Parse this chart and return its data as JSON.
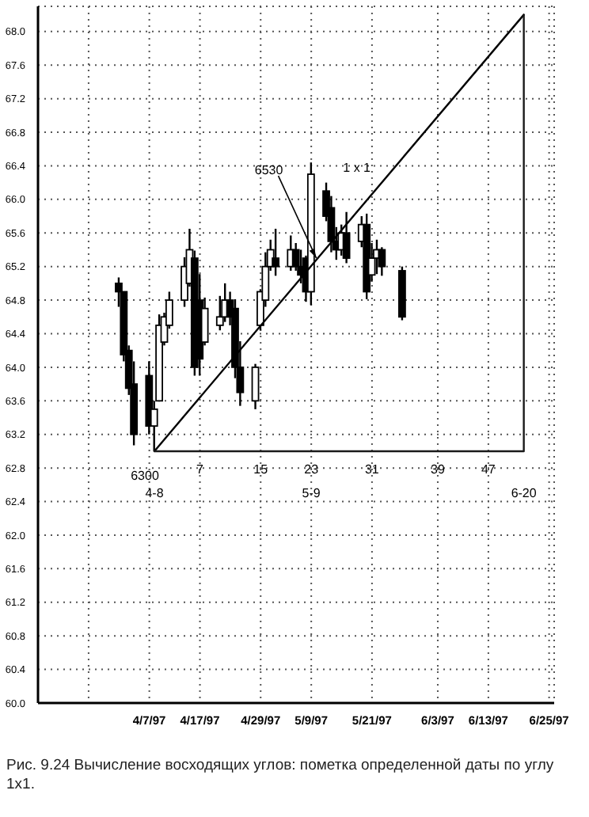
{
  "chart_data": {
    "type": "candlestick",
    "x": [
      "1997-04-01",
      "1997-04-02",
      "1997-04-03",
      "1997-04-04",
      "1997-04-07",
      "1997-04-08",
      "1997-04-09",
      "1997-04-10",
      "1997-04-11",
      "1997-04-14",
      "1997-04-15",
      "1997-04-16",
      "1997-04-17",
      "1997-04-18",
      "1997-04-21",
      "1997-04-22",
      "1997-04-23",
      "1997-04-24",
      "1997-04-25",
      "1997-04-28",
      "1997-04-29",
      "1997-04-30",
      "1997-05-01",
      "1997-05-02",
      "1997-05-05",
      "1997-05-06",
      "1997-05-07",
      "1997-05-08",
      "1997-05-09",
      "1997-05-12",
      "1997-05-13",
      "1997-05-14",
      "1997-05-15",
      "1997-05-16",
      "1997-05-19",
      "1997-05-20",
      "1997-05-21",
      "1997-05-22",
      "1997-05-23",
      "1997-05-27"
    ],
    "ohlc": [
      [
        65.0,
        65.07,
        64.72,
        64.9
      ],
      [
        64.9,
        64.9,
        64.07,
        64.15
      ],
      [
        64.2,
        64.26,
        63.67,
        63.75
      ],
      [
        63.8,
        64.07,
        63.07,
        63.2
      ],
      [
        63.9,
        64.07,
        63.2,
        63.3
      ],
      [
        63.3,
        63.6,
        63.0,
        63.5
      ],
      [
        63.6,
        64.63,
        63.6,
        64.5
      ],
      [
        64.3,
        64.65,
        64.26,
        64.6
      ],
      [
        64.5,
        64.9,
        64.46,
        64.8
      ],
      [
        64.8,
        65.31,
        64.72,
        65.2
      ],
      [
        65.0,
        65.65,
        64.96,
        65.4
      ],
      [
        65.3,
        65.39,
        63.9,
        64.0
      ],
      [
        64.8,
        65.11,
        63.9,
        64.1
      ],
      [
        64.3,
        64.83,
        64.26,
        64.7
      ],
      [
        64.5,
        64.85,
        64.44,
        64.6
      ],
      [
        64.6,
        65.0,
        64.54,
        64.8
      ],
      [
        64.8,
        64.9,
        64.5,
        64.6
      ],
      [
        64.7,
        64.81,
        63.87,
        64.0
      ],
      [
        64.0,
        64.31,
        63.54,
        63.7
      ],
      [
        63.6,
        64.04,
        63.5,
        64.0
      ],
      [
        64.5,
        64.93,
        64.44,
        64.9
      ],
      [
        64.8,
        65.37,
        64.72,
        65.2
      ],
      [
        65.2,
        65.52,
        65.15,
        65.4
      ],
      [
        65.3,
        65.65,
        65.09,
        65.2
      ],
      [
        65.2,
        65.57,
        65.15,
        65.4
      ],
      [
        65.4,
        65.48,
        65.15,
        65.2
      ],
      [
        65.2,
        65.4,
        65.0,
        65.1
      ],
      [
        65.3,
        65.33,
        64.78,
        64.9
      ],
      [
        64.9,
        66.44,
        64.74,
        66.3
      ],
      [
        66.1,
        66.2,
        65.74,
        65.8
      ],
      [
        65.9,
        66.04,
        65.37,
        65.5
      ],
      [
        65.5,
        65.67,
        65.28,
        65.4
      ],
      [
        65.4,
        65.7,
        65.33,
        65.6
      ],
      [
        65.6,
        65.85,
        65.24,
        65.3
      ],
      [
        65.5,
        65.8,
        65.43,
        65.7
      ],
      [
        65.7,
        65.83,
        64.81,
        64.9
      ],
      [
        65.1,
        65.48,
        65.02,
        65.3
      ],
      [
        65.3,
        65.52,
        65.11,
        65.4
      ],
      [
        65.4,
        65.43,
        65.09,
        65.2
      ],
      [
        65.15,
        65.2,
        64.56,
        64.6
      ]
    ],
    "color": "#000000",
    "series": [
      {
        "type": "line",
        "color": "#000000",
        "x": [
          "1997-04-08",
          "1997-06-20"
        ],
        "values": [
          63.0,
          68.2
        ]
      },
      {
        "type": "line",
        "color": "#1a1a1a",
        "x": [
          "1997-04-08",
          "1997-06-20",
          "1997-06-20"
        ],
        "values": [
          63.0,
          63.0,
          68.2
        ]
      }
    ],
    "xlim": [
      "1997-03-16",
      "1997-06-26"
    ],
    "xticks": [
      {
        "value": "1997-03-26",
        "label": null
      },
      {
        "value": "1997-04-07",
        "label": "4/7/97"
      },
      {
        "value": "1997-04-17",
        "label": "4/17/97"
      },
      {
        "value": "1997-04-29",
        "label": "4/29/97"
      },
      {
        "value": "1997-05-09",
        "label": "5/9/97"
      },
      {
        "value": "1997-05-21",
        "label": "5/21/97"
      },
      {
        "value": "1997-06-03",
        "label": "6/3/97"
      },
      {
        "value": "1997-06-13",
        "label": "6/13/97"
      },
      {
        "value": "1997-06-25",
        "label": "6/25/97"
      }
    ],
    "ylim": [
      60,
      68.3
    ],
    "yticks": [
      {
        "value": 60,
        "label": "60.0"
      },
      {
        "value": 60.4,
        "label": "60.4"
      },
      {
        "value": 60.8,
        "label": "60.8"
      },
      {
        "value": 61.2,
        "label": "61.2"
      },
      {
        "value": 61.6,
        "label": "61.6"
      },
      {
        "value": 62,
        "label": "62.0"
      },
      {
        "value": 62.4,
        "label": "62.4"
      },
      {
        "value": 62.8,
        "label": "62.8"
      },
      {
        "value": 63.2,
        "label": "63.2"
      },
      {
        "value": 63.6,
        "label": "63.6"
      },
      {
        "value": 64,
        "label": "64.0"
      },
      {
        "value": 64.4,
        "label": "64.4"
      },
      {
        "value": 64.8,
        "label": "64.8"
      },
      {
        "value": 65.2,
        "label": "65.2"
      },
      {
        "value": 65.6,
        "label": "65.6"
      },
      {
        "value": 66,
        "label": "66.0"
      },
      {
        "value": 66.4,
        "label": "66.4"
      },
      {
        "value": 66.8,
        "label": "66.8"
      },
      {
        "value": 67.2,
        "label": "67.2"
      },
      {
        "value": 67.6,
        "label": "67.6"
      },
      {
        "value": 68,
        "label": "68.0"
      }
    ],
    "grid": true,
    "line_style": "solid",
    "marker": "none",
    "annotations": [
      {
        "text": "6530",
        "x": "1997-05-10",
        "y": 65.3
      },
      {
        "text": "1 x 1",
        "x": "1997-05-23",
        "y": 66.2
      },
      {
        "text": "6300",
        "x": "1997-04-08",
        "y": 63.0
      },
      {
        "text": "4-8",
        "x": "1997-04-08",
        "y": 63.0
      },
      {
        "text": "7",
        "x": "1997-04-17",
        "y": 63.0
      },
      {
        "text": "15",
        "x": "1997-04-29",
        "y": 63.0
      },
      {
        "text": "23",
        "x": "1997-05-09",
        "y": 63.0
      },
      {
        "text": "31",
        "x": "1997-05-21",
        "y": 63.0
      },
      {
        "text": "39",
        "x": "1997-06-03",
        "y": 63.0
      },
      {
        "text": "47",
        "x": "1997-06-13",
        "y": 63.0
      },
      {
        "text": "5-9",
        "x": "1997-05-09",
        "y": 63.0
      },
      {
        "text": "6-20",
        "x": "1997-06-20",
        "y": 63.0
      },
      "Рис. 9.24  Вычисление восходящих углов: пометка определенной даты по углу 1x1."
    ]
  }
}
